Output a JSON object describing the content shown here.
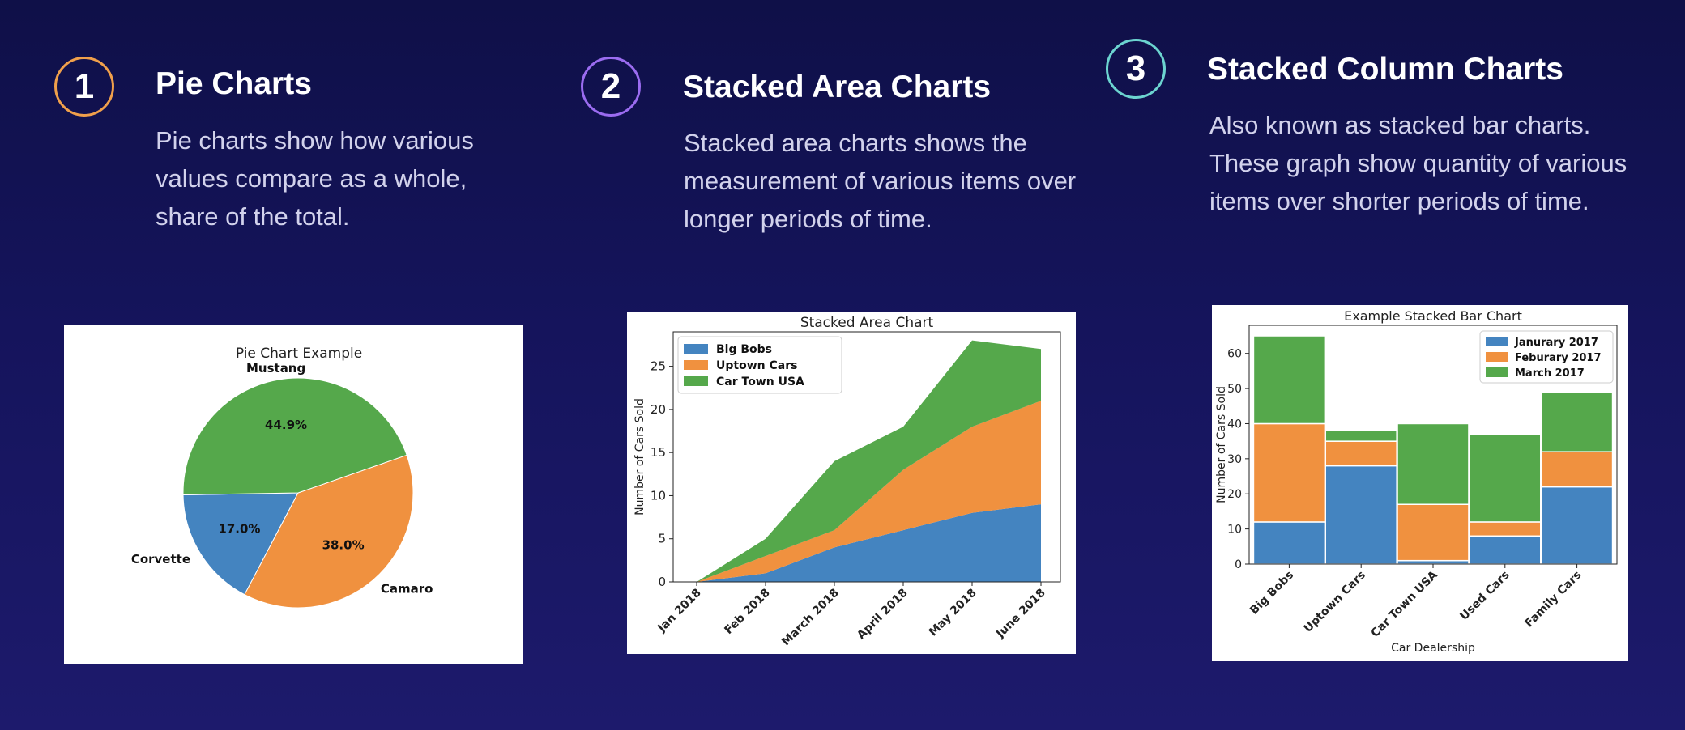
{
  "sections": [
    {
      "number": "1",
      "title": "Pie Charts",
      "ring_color": "#f0a04b",
      "description_lines": [
        "Pie charts show how various",
        "values compare as a whole,",
        "share of the total."
      ]
    },
    {
      "number": "2",
      "title": "Stacked Area Charts",
      "ring_color": "#9b6cf0",
      "description_lines": [
        "Stacked area charts shows the",
        "measurement of various items over",
        "longer periods of time."
      ]
    },
    {
      "number": "3",
      "title": "Stacked Column Charts",
      "ring_color": "#6cd4d0",
      "description_lines": [
        "Also known as stacked bar charts.",
        "These graph show quantity of various",
        "items over shorter periods of time."
      ]
    }
  ],
  "chart_data": [
    {
      "type": "pie",
      "title": "Pie Chart Example",
      "labels": [
        "Corvette",
        "Camaro",
        "Mustang"
      ],
      "values": [
        17.0,
        38.0,
        44.9
      ],
      "percent_labels": [
        "17.0%",
        "38.0%",
        "44.9%"
      ],
      "colors": [
        "#4484c0",
        "#f0913f",
        "#55a84b"
      ]
    },
    {
      "type": "area",
      "title": "Stacked Area Chart",
      "xlabel": "",
      "ylabel": "Number of Cars Sold",
      "categories": [
        "Jan 2018",
        "Feb 2018",
        "March 2018",
        "April 2018",
        "May 2018",
        "June 2018"
      ],
      "series": [
        {
          "name": "Big Bobs",
          "color": "#4484c0",
          "values": [
            0,
            1,
            4,
            6,
            8,
            9
          ]
        },
        {
          "name": "Uptown Cars",
          "color": "#f0913f",
          "values": [
            0,
            2,
            2,
            7,
            10,
            12
          ]
        },
        {
          "name": "Car Town USA",
          "color": "#55a84b",
          "values": [
            0,
            2,
            8,
            5,
            10,
            6
          ]
        }
      ],
      "yticks": [
        0,
        5,
        10,
        15,
        20,
        25
      ],
      "ylim": [
        0,
        29
      ],
      "legend": "upper-left"
    },
    {
      "type": "bar",
      "stacked": true,
      "title": "Example Stacked Bar Chart",
      "xlabel": "Car Dealership",
      "ylabel": "Number of Cars Sold",
      "categories": [
        "Big Bobs",
        "Uptown Cars",
        "Car Town USA",
        "Used Cars",
        "Family Cars"
      ],
      "series": [
        {
          "name": "Janurary 2017",
          "color": "#4484c0",
          "values": [
            12,
            28,
            1,
            8,
            22
          ]
        },
        {
          "name": "Feburary 2017",
          "color": "#f0913f",
          "values": [
            28,
            7,
            16,
            4,
            10
          ]
        },
        {
          "name": "March 2017",
          "color": "#55a84b",
          "values": [
            25,
            3,
            23,
            25,
            17
          ]
        }
      ],
      "yticks": [
        0,
        10,
        20,
        30,
        40,
        50,
        60
      ],
      "ylim": [
        0,
        68
      ],
      "legend": "upper-right"
    }
  ]
}
